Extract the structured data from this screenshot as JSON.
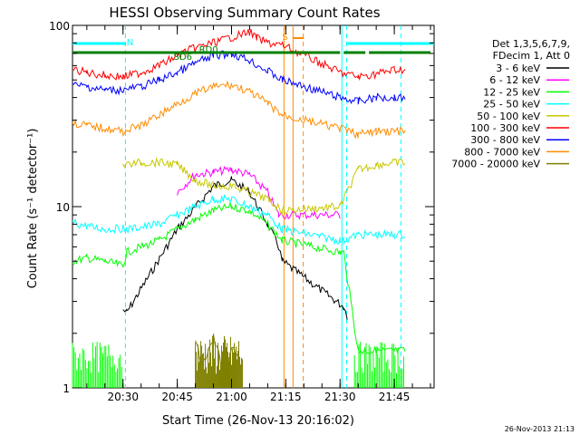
{
  "chart_data": {
    "type": "line",
    "title": "HESSI Observing Summary Count Rates",
    "xlabel": "Start Time (26-Nov-13 20:16:02)",
    "ylabel": "Count Rate (s⁻¹ detector⁻¹)",
    "x_range": [
      "20:16:02",
      "21:56:00"
    ],
    "ylim": [
      1,
      100
    ],
    "y_scale": "log",
    "y_ticks": [
      "1",
      "10",
      "100"
    ],
    "x_ticks": [
      "20:30",
      "20:45",
      "21:00",
      "21:15",
      "21:30",
      "21:45"
    ],
    "legend_header": [
      "Det 1,3,5,6,7,9,",
      "FDecim 1, Att 0"
    ],
    "legend_position": "right",
    "series": [
      {
        "name": "3 - 6 keV",
        "color": "#000000",
        "x": [
          "20:16",
          "20:30",
          "20:31",
          "20:45",
          "20:55",
          "21:00",
          "21:05",
          "21:10",
          "21:13",
          "21:14",
          "21:31",
          "21:32",
          "21:33",
          "21:34"
        ],
        "y": [
          null,
          2.7,
          2.6,
          7.5,
          13,
          14,
          12,
          8,
          6,
          5,
          2.8,
          2.5,
          null,
          null
        ]
      },
      {
        "name": "6 - 12 keV",
        "color": "#ff00ff",
        "x": [
          "20:45",
          "20:50",
          "20:55",
          "21:00",
          "21:05",
          "21:10",
          "21:13",
          "21:28",
          "21:30"
        ],
        "y": [
          12,
          15,
          15.5,
          16,
          15,
          12,
          9,
          9,
          9
        ]
      },
      {
        "name": "12 - 25 keV",
        "color": "#00ff00",
        "x": [
          "20:16",
          "20:20",
          "20:25",
          "20:30",
          "20:31",
          "20:40",
          "20:45",
          "20:50",
          "20:55",
          "21:00",
          "21:05",
          "21:10",
          "21:14",
          "21:30",
          "21:31",
          "21:35",
          "21:40",
          "21:45",
          "21:48"
        ],
        "y": [
          5,
          5.2,
          5,
          4.7,
          5.6,
          6.5,
          7.5,
          8.5,
          9.5,
          10,
          9.5,
          8,
          6.5,
          5.6,
          5.6,
          1.6,
          1.6,
          1.6,
          1.6
        ]
      },
      {
        "name": "25 - 50 keV",
        "color": "#00ffff",
        "x": [
          "20:16",
          "20:20",
          "20:25",
          "20:30",
          "20:31",
          "20:40",
          "20:45",
          "20:50",
          "20:55",
          "21:00",
          "21:05",
          "21:10",
          "21:14",
          "21:30",
          "21:31",
          "21:35",
          "21:40",
          "21:45",
          "21:48"
        ],
        "y": [
          8.2,
          7.8,
          7.5,
          7.6,
          7.5,
          8,
          9,
          10,
          11,
          11,
          10,
          9,
          7.5,
          6.5,
          6.5,
          7,
          7,
          7,
          7
        ]
      },
      {
        "name": "50 - 100 keV",
        "color": "#c8c800",
        "x": [
          "20:30",
          "20:35",
          "20:40",
          "20:45",
          "20:50",
          "20:55",
          "21:00",
          "21:05",
          "21:10",
          "21:14",
          "21:30",
          "21:35",
          "21:40",
          "21:45",
          "21:48"
        ],
        "y": [
          17,
          17.5,
          17.5,
          17,
          14,
          13,
          13,
          12,
          11,
          9.5,
          10,
          16,
          17,
          17.5,
          17.5
        ]
      },
      {
        "name": "100 - 300 keV",
        "color": "#ff0000",
        "x": [
          "20:16",
          "20:20",
          "20:25",
          "20:30",
          "20:35",
          "20:40",
          "20:45",
          "20:48",
          "21:05",
          "21:07",
          "21:10",
          "21:14",
          "21:30",
          "21:35",
          "21:40",
          "21:45",
          "21:48"
        ],
        "y": [
          57,
          55,
          53,
          52,
          55,
          60,
          68,
          73,
          92,
          85,
          80,
          78,
          55,
          52,
          54,
          57,
          57
        ]
      },
      {
        "name": "300 - 800 keV",
        "color": "#0000ff",
        "x": [
          "20:16",
          "20:20",
          "20:25",
          "20:30",
          "20:35",
          "20:40",
          "20:45",
          "20:50",
          "20:55",
          "21:00",
          "21:05",
          "21:10",
          "21:14",
          "21:30",
          "21:35",
          "21:40",
          "21:45",
          "21:48"
        ],
        "y": [
          47,
          46,
          44,
          44,
          46,
          50,
          55,
          62,
          68,
          70,
          64,
          56,
          50,
          40,
          38,
          40,
          40,
          40
        ]
      },
      {
        "name": "800 - 7000 keV",
        "color": "#ff8c00",
        "x": [
          "20:16",
          "20:20",
          "20:25",
          "20:30",
          "20:35",
          "20:40",
          "20:45",
          "20:50",
          "20:55",
          "21:00",
          "21:05",
          "21:10",
          "21:14",
          "21:30",
          "21:35",
          "21:40",
          "21:45",
          "21:48"
        ],
        "y": [
          29,
          28,
          27,
          26,
          28,
          32,
          37,
          42,
          46,
          47,
          43,
          37,
          32,
          27,
          25,
          26,
          26,
          26
        ]
      },
      {
        "name": "7000 - 20000 keV",
        "color": "#808000",
        "x": [
          "20:16",
          "20:50",
          "20:52",
          "20:55",
          "20:58",
          "21:00",
          "21:02",
          "21:03",
          "21:48"
        ],
        "y": [
          null,
          1.8,
          1.3,
          1.9,
          1.2,
          1.7,
          1.4,
          null,
          null
        ]
      }
    ],
    "flags": [
      {
        "label": "N",
        "color": "#00ffff"
      },
      {
        "label": "S",
        "color": "#ff8c00"
      },
      {
        "label": "RD0",
        "color": "#008000"
      },
      {
        "label": "SD6",
        "color": "#008000"
      }
    ],
    "date_stamp": "26-Nov-2013 21:13"
  }
}
